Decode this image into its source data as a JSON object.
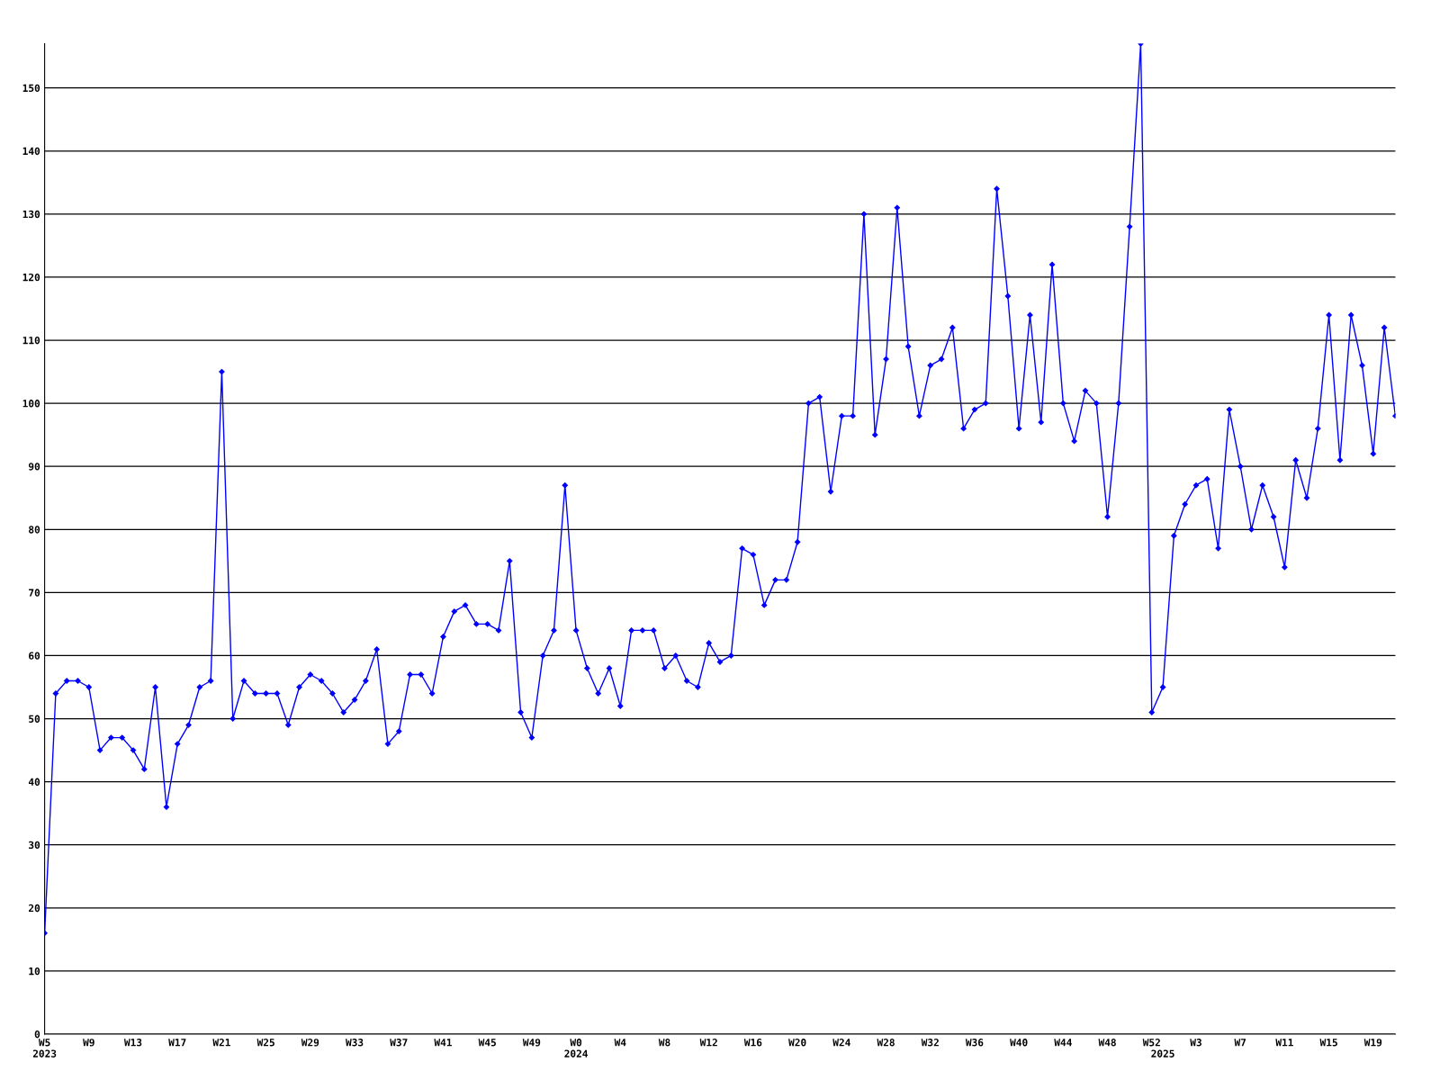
{
  "chart_data": {
    "type": "line",
    "categories": [
      "W5\n2023",
      null,
      null,
      null,
      "W9",
      null,
      null,
      null,
      "W13",
      null,
      null,
      null,
      "W17",
      null,
      null,
      null,
      "W21",
      null,
      null,
      null,
      "W25",
      null,
      null,
      null,
      "W29",
      null,
      null,
      null,
      "W33",
      null,
      null,
      null,
      "W37",
      null,
      null,
      null,
      "W41",
      null,
      null,
      null,
      "W45",
      null,
      null,
      null,
      "W49",
      null,
      null,
      null,
      "W0\n2024",
      null,
      null,
      null,
      "W4",
      null,
      null,
      null,
      "W8",
      null,
      null,
      null,
      "W12",
      null,
      null,
      null,
      "W16",
      null,
      null,
      null,
      "W20",
      null,
      null,
      null,
      "W24",
      null,
      null,
      null,
      "W28",
      null,
      null,
      null,
      "W32",
      null,
      null,
      null,
      "W36",
      null,
      null,
      null,
      "W40",
      null,
      null,
      null,
      "W44",
      null,
      null,
      null,
      "W48",
      null,
      null,
      null,
      "W52",
      "\n2025",
      null,
      null,
      "W3",
      null,
      null,
      null,
      "W7",
      null,
      null,
      null,
      "W11",
      null,
      null,
      null,
      "W15",
      null,
      null,
      null,
      "W19",
      null,
      null
    ],
    "series": [
      {
        "color": "#0000ff",
        "values": [
          16,
          54,
          56,
          56,
          55,
          45,
          47,
          47,
          45,
          42,
          55,
          36,
          46,
          49,
          55,
          56,
          105,
          50,
          56,
          54,
          54,
          54,
          49,
          55,
          57,
          56,
          54,
          51,
          53,
          56,
          61,
          46,
          48,
          57,
          57,
          54,
          63,
          67,
          68,
          65,
          65,
          64,
          75,
          51,
          47,
          60,
          64,
          87,
          64,
          58,
          54,
          58,
          52,
          64,
          64,
          64,
          58,
          60,
          56,
          55,
          62,
          59,
          60,
          77,
          76,
          68,
          72,
          72,
          78,
          100,
          101,
          86,
          98,
          98,
          130,
          95,
          107,
          131,
          109,
          98,
          106,
          107,
          112,
          96,
          99,
          100,
          134,
          117,
          96,
          114,
          97,
          122,
          100,
          94,
          102,
          100,
          82,
          100,
          128,
          157,
          51,
          55,
          79,
          84,
          87,
          88,
          77,
          99,
          90,
          80,
          87,
          82,
          74,
          91,
          85,
          96,
          114,
          91,
          114,
          106,
          92,
          112,
          98
        ]
      }
    ],
    "ylim": [
      0,
      157
    ],
    "yticks": [
      0,
      10,
      20,
      30,
      40,
      50,
      60,
      70,
      80,
      90,
      100,
      110,
      120,
      130,
      140,
      150
    ],
    "grid": "y",
    "legend": false,
    "marker": "diamond",
    "line_style": "solid"
  }
}
